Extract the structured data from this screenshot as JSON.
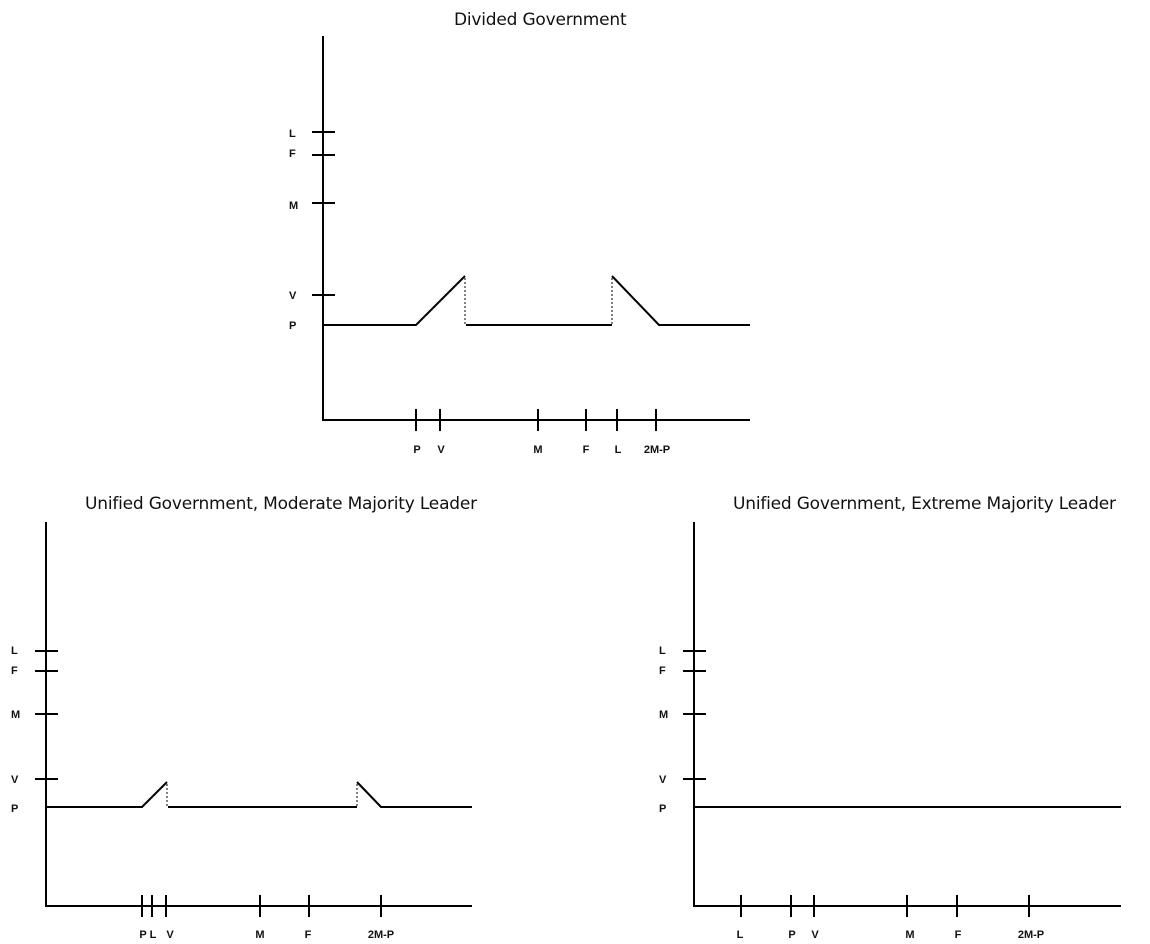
{
  "panels": [
    {
      "title": "Divided Government",
      "y_ticks": [
        "L",
        "F",
        "M",
        "V",
        "P"
      ],
      "x_ticks": [
        "P",
        "V",
        "M",
        "F",
        "L",
        "2M-P"
      ],
      "curve": "status-quo baseline at P with rising segment after P, drop at V, flat middle, jump near L, falling segment to 2M-P"
    },
    {
      "title": "Unified Government, Moderate Majority Leader",
      "y_ticks": [
        "L",
        "F",
        "M",
        "V",
        "P"
      ],
      "x_ticks": [
        "P",
        "L",
        "V",
        "M",
        "F",
        "2M-P"
      ],
      "curve": "status-quo baseline at P with small rise between L and V, flat middle, small peak before 2M-P"
    },
    {
      "title": "Unified Government, Extreme Majority Leader",
      "y_ticks": [
        "L",
        "F",
        "M",
        "V",
        "P"
      ],
      "x_ticks": [
        "L",
        "P",
        "V",
        "M",
        "F",
        "2M-P"
      ],
      "curve": "flat at P"
    }
  ],
  "colors": {
    "line": "#000000",
    "text": "#111111"
  }
}
